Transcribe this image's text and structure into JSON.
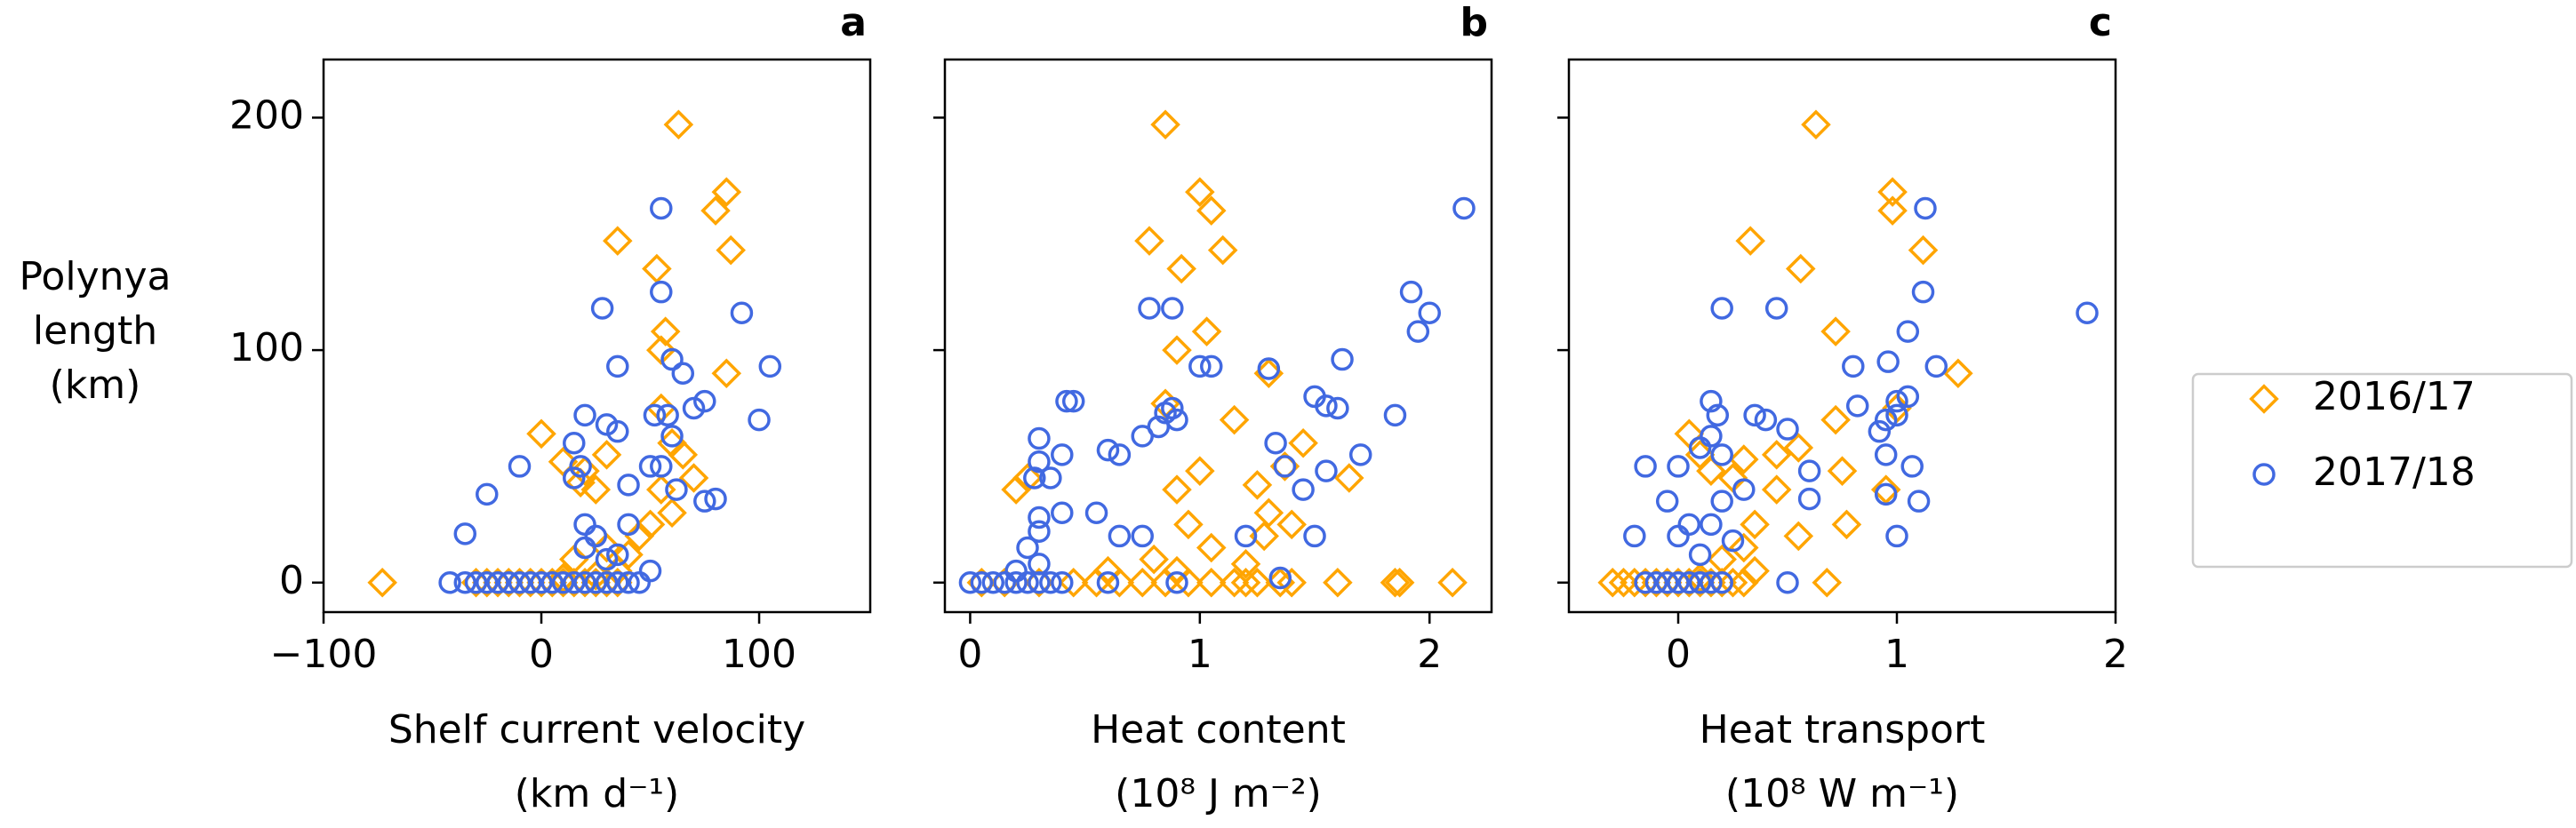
{
  "chart_data": [
    {
      "type": "scatter",
      "panel_label": "a",
      "x_label": [
        "Shelf current velocity",
        "(km d⁻¹)"
      ],
      "y_label": [
        "Polynya",
        "length",
        "(km)"
      ],
      "xlim": [
        -100,
        151
      ],
      "ylim": [
        -12.7,
        225
      ],
      "xticks": [
        {
          "value": -100,
          "label": "−100"
        },
        0,
        100
      ],
      "yticks": [
        0,
        100,
        200
      ],
      "series": [
        {
          "name": "2016/17",
          "color": "#ffa500",
          "marker": "diamond",
          "x": [
            -73,
            -30,
            -25,
            -20,
            -15,
            -10,
            -5,
            0,
            5,
            10,
            15,
            20,
            25,
            30,
            35,
            63,
            85,
            80,
            87,
            35,
            53,
            57,
            55,
            85,
            0,
            10,
            20,
            18,
            25,
            30,
            55,
            60,
            65,
            70,
            55,
            60,
            50,
            45,
            40,
            30,
            15,
            35,
            25,
            10
          ],
          "values": [
            0,
            0,
            0,
            0,
            0,
            0,
            0,
            0,
            0,
            0,
            0,
            0,
            0,
            0,
            0,
            197,
            168,
            160,
            143,
            147,
            135,
            108,
            100,
            90,
            64,
            52,
            48,
            43,
            40,
            55,
            75,
            60,
            55,
            45,
            40,
            30,
            25,
            20,
            12,
            15,
            10,
            5,
            3,
            2
          ]
        },
        {
          "name": "2017/18",
          "color": "#4169e1",
          "marker": "circle",
          "x": [
            -42,
            -35,
            -30,
            -25,
            -20,
            -15,
            -10,
            -5,
            0,
            5,
            10,
            15,
            20,
            25,
            30,
            35,
            40,
            45,
            55,
            55,
            92,
            28,
            35,
            60,
            65,
            105,
            100,
            75,
            70,
            58,
            52,
            20,
            30,
            35,
            15,
            18,
            -10,
            -25,
            -35,
            15,
            20,
            25,
            40,
            40,
            55,
            60,
            80,
            75,
            62,
            50,
            30,
            35,
            20,
            50
          ],
          "values": [
            0,
            0,
            0,
            0,
            0,
            0,
            0,
            0,
            0,
            0,
            0,
            0,
            0,
            0,
            0,
            0,
            0,
            0,
            161,
            125,
            116,
            118,
            93,
            96,
            90,
            93,
            70,
            78,
            75,
            72,
            72,
            72,
            68,
            65,
            60,
            50,
            50,
            38,
            21,
            45,
            25,
            20,
            25,
            42,
            50,
            63,
            36,
            35,
            40,
            50,
            10,
            12,
            15,
            5
          ]
        }
      ]
    },
    {
      "type": "scatter",
      "panel_label": "b",
      "x_label": [
        "Heat content",
        "(10⁸ J m⁻²)"
      ],
      "xlim": [
        -0.11,
        2.27
      ],
      "ylim": [
        -12.7,
        225
      ],
      "xticks": [
        0,
        1,
        2
      ],
      "yticks": [
        0,
        100,
        200
      ],
      "series": [
        {
          "name": "2016/17",
          "color": "#ffa500",
          "marker": "diamond",
          "x": [
            0.05,
            0.15,
            0.3,
            0.45,
            0.55,
            0.65,
            0.75,
            0.85,
            0.95,
            1.05,
            1.15,
            1.2,
            1.25,
            1.35,
            1.4,
            1.6,
            1.85,
            1.87,
            2.1,
            0.85,
            1.0,
            1.05,
            0.78,
            1.1,
            0.92,
            1.03,
            0.9,
            1.3,
            0.85,
            1.15,
            1.45,
            1.37,
            1.25,
            1.65,
            0.2,
            0.25,
            0.9,
            1.0,
            1.3,
            1.28,
            1.4,
            0.95,
            0.8,
            1.05,
            0.9,
            1.2,
            0.6
          ],
          "values": [
            0,
            0,
            0,
            0,
            0,
            0,
            0,
            0,
            0,
            0,
            0,
            0,
            0,
            0,
            0,
            0,
            0,
            0,
            0,
            197,
            168,
            160,
            147,
            143,
            135,
            108,
            100,
            90,
            77,
            70,
            60,
            50,
            42,
            45,
            40,
            45,
            40,
            48,
            30,
            20,
            25,
            25,
            10,
            15,
            5,
            8,
            5
          ]
        },
        {
          "name": "2017/18",
          "color": "#4169e1",
          "marker": "circle",
          "x": [
            0,
            0.05,
            0.1,
            0.15,
            0.2,
            0.25,
            0.3,
            0.35,
            0.4,
            0.6,
            0.9,
            2.15,
            1.92,
            2.0,
            1.95,
            0.78,
            0.88,
            1.05,
            1.0,
            1.3,
            1.62,
            0.42,
            0.45,
            0.85,
            0.88,
            0.9,
            0.82,
            0.75,
            0.6,
            0.65,
            0.3,
            0.3,
            0.4,
            1.5,
            1.55,
            1.6,
            1.7,
            1.85,
            1.55,
            1.45,
            1.33,
            1.37,
            0.35,
            0.28,
            0.3,
            0.3,
            0.25,
            0.55,
            0.4,
            0.65,
            0.75,
            1.2,
            1.5,
            1.35,
            0.3,
            0.2
          ],
          "values": [
            0,
            0,
            0,
            0,
            0,
            0,
            0,
            0,
            0,
            0,
            0,
            161,
            125,
            116,
            108,
            118,
            118,
            93,
            93,
            92,
            96,
            78,
            78,
            73,
            75,
            70,
            67,
            63,
            57,
            55,
            62,
            52,
            55,
            80,
            76,
            75,
            55,
            72,
            48,
            40,
            60,
            50,
            45,
            45,
            28,
            22,
            15,
            30,
            30,
            20,
            20,
            20,
            20,
            2,
            8,
            5
          ]
        }
      ]
    },
    {
      "type": "scatter",
      "panel_label": "c",
      "x_label": [
        "Heat transport",
        "(10⁸ W m⁻¹)"
      ],
      "xlim": [
        -0.5,
        2
      ],
      "ylim": [
        -12.7,
        225
      ],
      "xticks": [
        0,
        1,
        2
      ],
      "yticks": [
        0,
        100,
        200
      ],
      "series": [
        {
          "name": "2016/17",
          "color": "#ffa500",
          "marker": "diamond",
          "x": [
            -0.3,
            -0.25,
            -0.2,
            -0.15,
            -0.1,
            -0.05,
            0,
            0.05,
            0.1,
            0.15,
            0.2,
            0.25,
            0.3,
            0.63,
            0.98,
            0.98,
            0.33,
            1.12,
            0.56,
            0.72,
            1.28,
            0.72,
            1.0,
            0.55,
            0.45,
            0.3,
            0.05,
            0.15,
            0.1,
            0.25,
            0.45,
            0.75,
            0.95,
            0.77,
            0.55,
            0.35,
            0.3,
            0.2,
            0.35,
            0.68,
            0.1
          ],
          "values": [
            0,
            0,
            0,
            0,
            0,
            0,
            0,
            0,
            0,
            0,
            0,
            0,
            0,
            197,
            168,
            160,
            147,
            143,
            135,
            108,
            90,
            70,
            75,
            58,
            55,
            53,
            64,
            48,
            55,
            45,
            40,
            48,
            40,
            25,
            20,
            25,
            15,
            10,
            5,
            0,
            2
          ]
        },
        {
          "name": "2017/18",
          "color": "#4169e1",
          "marker": "circle",
          "x": [
            -0.15,
            -0.1,
            -0.05,
            0,
            0.05,
            0.1,
            0.15,
            0.2,
            1.87,
            1.13,
            1.12,
            1.05,
            0.96,
            0.8,
            0.82,
            0.2,
            0.45,
            0.18,
            0.15,
            0.35,
            0.4,
            0.5,
            0.95,
            1.0,
            1.05,
            1.0,
            0.92,
            1.18,
            1.07,
            1.0,
            1.1,
            0.95,
            0.95,
            0.6,
            0.6,
            0.3,
            0.2,
            0.15,
            0.1,
            0.0,
            -0.15,
            -0.05,
            0.2,
            0.15,
            0.05,
            0.25,
            0.1,
            0.0,
            0.5,
            -0.2
          ],
          "values": [
            0,
            0,
            0,
            0,
            0,
            0,
            0,
            0,
            116,
            161,
            125,
            108,
            95,
            93,
            76,
            118,
            118,
            72,
            78,
            72,
            70,
            66,
            70,
            78,
            80,
            72,
            65,
            93,
            50,
            20,
            35,
            38,
            55,
            48,
            36,
            40,
            55,
            63,
            58,
            50,
            50,
            35,
            35,
            25,
            25,
            18,
            12,
            20,
            0,
            20
          ]
        }
      ]
    }
  ]
}
